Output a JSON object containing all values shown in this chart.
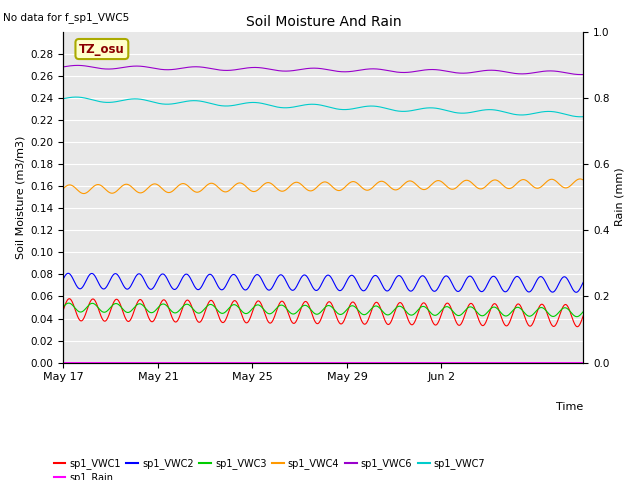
{
  "title": "Soil Moisture And Rain",
  "no_data_text": "No data for f_sp1_VWC5",
  "box_label": "TZ_osu",
  "xlabel": "Time",
  "ylabel_left": "Soil Moisture (m3/m3)",
  "ylabel_right": "Rain (mm)",
  "xlim_days": [
    0,
    22
  ],
  "ylim_left": [
    0.0,
    0.3
  ],
  "ylim_right": [
    0.0,
    1.0
  ],
  "x_ticks_labels": [
    "May 17",
    "May 21",
    "May 25",
    "May 29",
    "Jun 2"
  ],
  "x_ticks_pos": [
    0,
    4,
    8,
    12,
    16
  ],
  "background_color": "#e8e8e8",
  "series": {
    "sp1_VWC1": {
      "color": "#ff0000",
      "base": 0.048,
      "amplitude": 0.01,
      "period": 1.0,
      "trend": -0.00025,
      "phase": 0.0
    },
    "sp1_VWC2": {
      "color": "#0000ff",
      "base": 0.074,
      "amplitude": 0.007,
      "period": 1.0,
      "trend": -0.00015,
      "phase": 0.3
    },
    "sp1_VWC3": {
      "color": "#00cc00",
      "base": 0.05,
      "amplitude": 0.004,
      "period": 1.0,
      "trend": -0.0002,
      "phase": 0.15
    },
    "sp1_VWC4": {
      "color": "#ff9900",
      "base": 0.157,
      "amplitude": 0.004,
      "period": 1.2,
      "trend": 0.00025,
      "phase": 0.2
    },
    "sp1_VWC6": {
      "color": "#9900cc",
      "base": 0.268,
      "amplitude": 0.0015,
      "period": 2.5,
      "trend": -0.00025,
      "phase": 0.0
    },
    "sp1_VWC7": {
      "color": "#00cccc",
      "base": 0.239,
      "amplitude": 0.002,
      "period": 2.5,
      "trend": -0.00065,
      "phase": 0.1
    },
    "sp1_Rain": {
      "color": "#ff00ff",
      "base": 0.0,
      "amplitude": 0.0,
      "period": 1.0,
      "trend": 0.0,
      "phase": 0.0
    }
  },
  "legend_order": [
    "sp1_VWC1",
    "sp1_VWC2",
    "sp1_VWC3",
    "sp1_VWC4",
    "sp1_VWC6",
    "sp1_VWC7",
    "sp1_Rain"
  ]
}
